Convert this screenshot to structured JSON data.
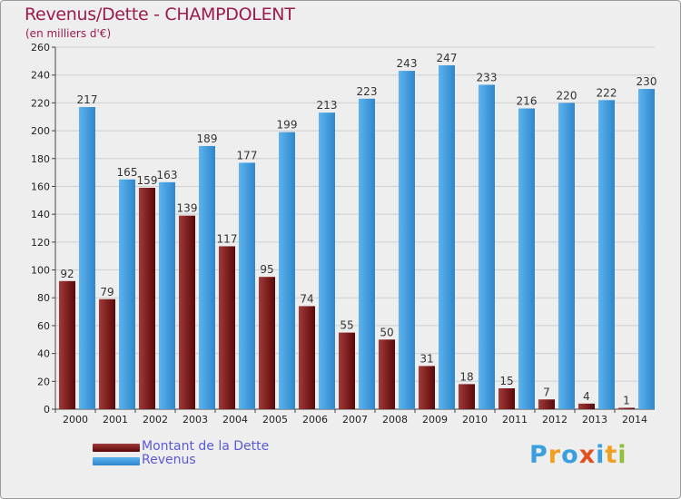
{
  "colors": {
    "debt_dark": "#5a0808",
    "debt_light": "#a23a3a",
    "rev_dark": "#2f86cc",
    "rev_light": "#5cb3ee",
    "title": "#9b1b4f",
    "legend_text": "#5a5ad8",
    "grid": "#cfcfcf",
    "axis_text": "#222222"
  },
  "logo": {
    "letters": [
      "P",
      "r",
      "o",
      "x",
      "i",
      "t",
      "i"
    ],
    "letter_colors": [
      "#3aa0dd",
      "#f0a020",
      "#3aa0dd",
      "#e05020",
      "#3aa0dd",
      "#f0a020",
      "#8fc03a"
    ]
  },
  "chart_data": {
    "type": "bar",
    "title": "Revenus/Dette - CHAMPDOLENT",
    "subtitle": "(en milliers d'€)",
    "xlabel": "",
    "ylabel": "",
    "ylim": [
      0,
      260
    ],
    "yticks": [
      0,
      20,
      40,
      60,
      80,
      100,
      120,
      140,
      160,
      180,
      200,
      220,
      240,
      260
    ],
    "grid": true,
    "legend_position": "bottom-left",
    "categories": [
      "2000",
      "2001",
      "2002",
      "2003",
      "2004",
      "2005",
      "2006",
      "2007",
      "2008",
      "2009",
      "2010",
      "2011",
      "2012",
      "2013",
      "2014"
    ],
    "series": [
      {
        "name": "Montant de la Dette",
        "values": [
          92,
          79,
          159,
          139,
          117,
          95,
          74,
          55,
          50,
          31,
          18,
          15,
          7,
          4,
          1
        ]
      },
      {
        "name": "Revenus",
        "values": [
          217,
          165,
          163,
          189,
          177,
          199,
          213,
          223,
          243,
          247,
          233,
          216,
          220,
          222,
          230
        ]
      }
    ]
  }
}
